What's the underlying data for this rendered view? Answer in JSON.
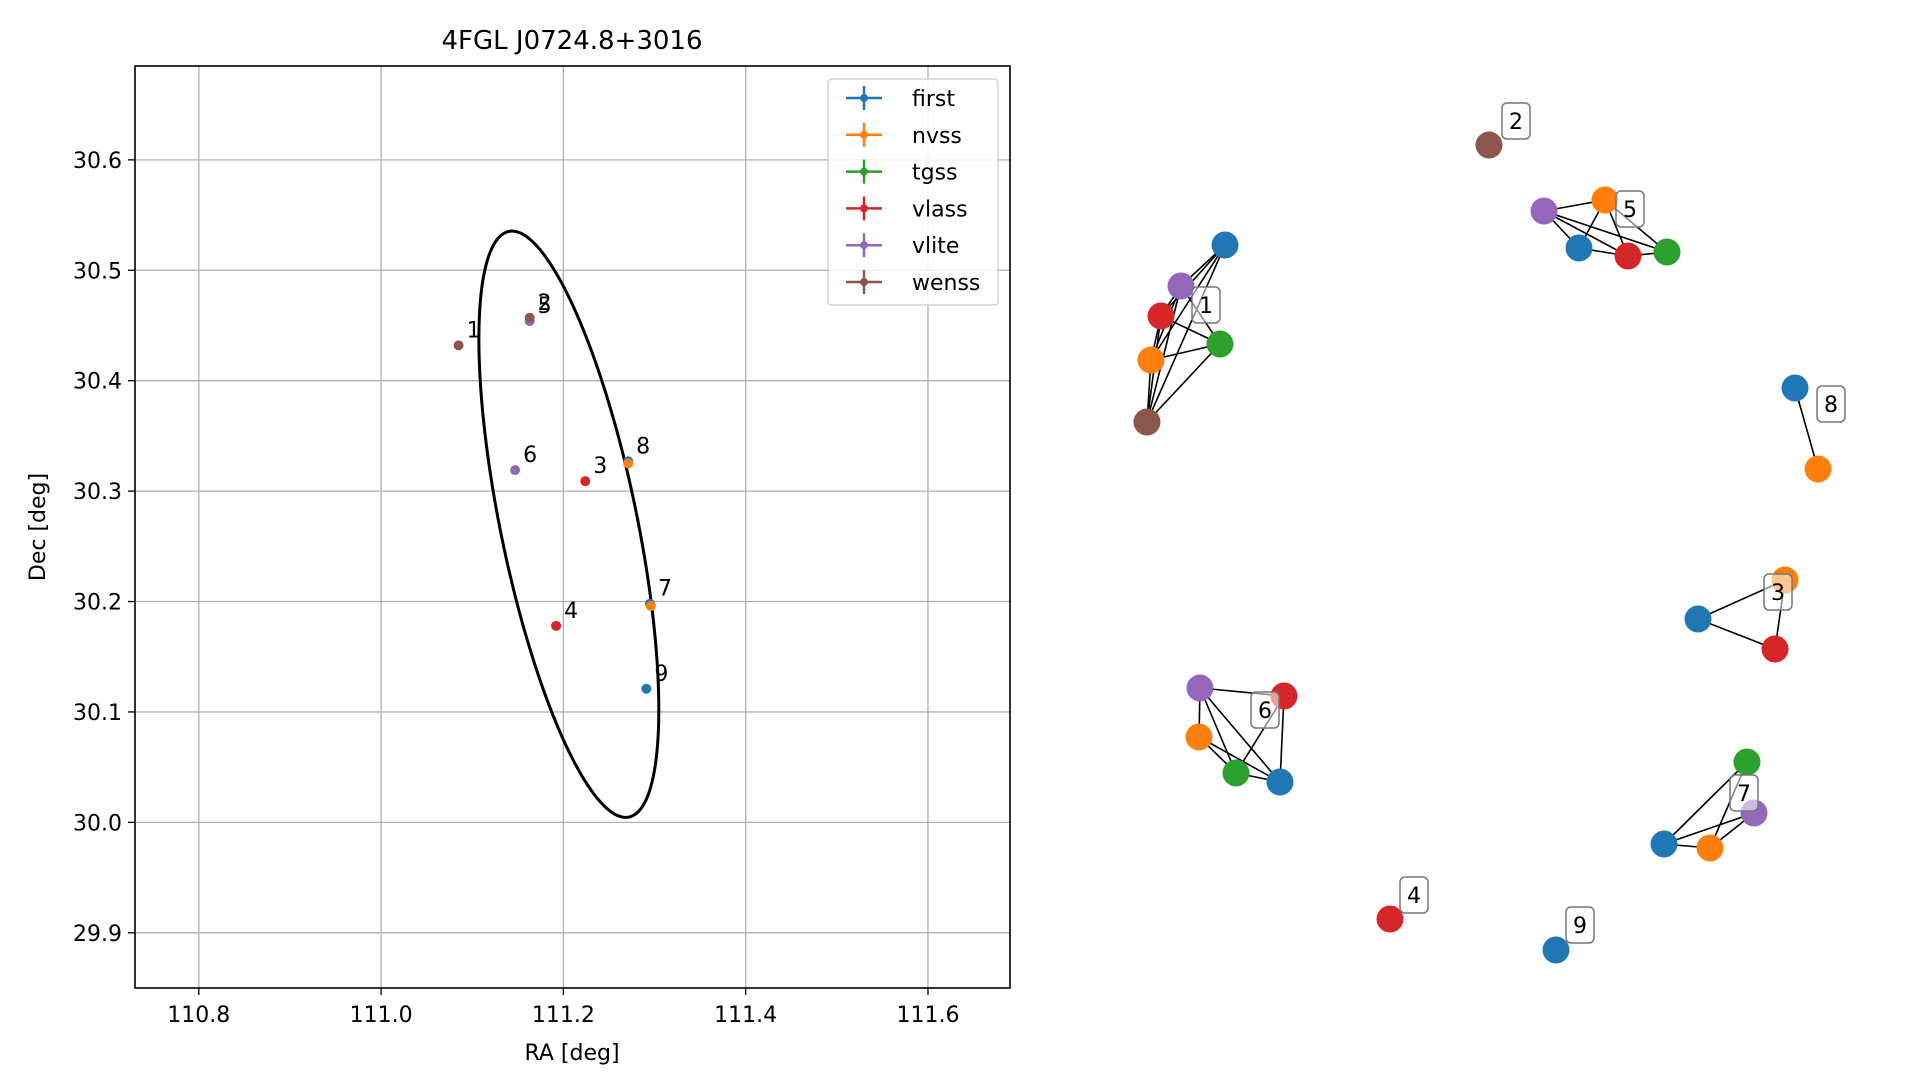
{
  "chart_data": [
    {
      "type": "scatter",
      "title": "4FGL J0724.8+3016",
      "xlabel": "RA [deg]",
      "ylabel": "Dec [deg]",
      "xlim": [
        110.73,
        111.69
      ],
      "ylim": [
        29.85,
        30.685
      ],
      "xticks": [
        110.8,
        111.0,
        111.2,
        111.4,
        111.6
      ],
      "xtick_labels": [
        "110.8",
        "111.0",
        "111.2",
        "111.4",
        "111.6"
      ],
      "yticks": [
        29.9,
        30.0,
        30.1,
        30.2,
        30.3,
        30.4,
        30.5,
        30.6
      ],
      "ytick_labels": [
        "29.9",
        "30.0",
        "30.1",
        "30.2",
        "30.3",
        "30.4",
        "30.5",
        "30.6"
      ],
      "grid": true,
      "legend_position": "upper right",
      "series": [
        {
          "name": "first",
          "color": "#1f77b4",
          "points": [
            [
              111.271,
              30.327
            ],
            [
              111.295,
              30.198
            ],
            [
              111.291,
              30.121
            ]
          ]
        },
        {
          "name": "nvss",
          "color": "#ff7f0e",
          "points": [
            [
              111.271,
              30.325
            ],
            [
              111.296,
              30.196
            ]
          ]
        },
        {
          "name": "tgss",
          "color": "#2ca02c",
          "points": []
        },
        {
          "name": "vlass",
          "color": "#d62728",
          "points": [
            [
              111.224,
              30.309
            ],
            [
              111.192,
              30.178
            ]
          ]
        },
        {
          "name": "vlite",
          "color": "#9467bd",
          "points": [
            [
              111.147,
              30.319
            ],
            [
              111.163,
              30.454
            ]
          ]
        },
        {
          "name": "wenss",
          "color": "#8c564b",
          "points": [
            [
              111.085,
              30.432
            ],
            [
              111.163,
              30.457
            ]
          ]
        }
      ],
      "annotations": [
        {
          "text": "1",
          "x": 111.085,
          "y": 30.432
        },
        {
          "text": "5",
          "x": 111.163,
          "y": 30.454
        },
        {
          "text": "2",
          "x": 111.163,
          "y": 30.457
        },
        {
          "text": "6",
          "x": 111.147,
          "y": 30.319
        },
        {
          "text": "3",
          "x": 111.224,
          "y": 30.309
        },
        {
          "text": "8",
          "x": 111.271,
          "y": 30.327
        },
        {
          "text": "7",
          "x": 111.295,
          "y": 30.198
        },
        {
          "text": "4",
          "x": 111.192,
          "y": 30.178
        },
        {
          "text": "9",
          "x": 111.291,
          "y": 30.121
        }
      ],
      "ellipse": {
        "center": [
          111.206,
          30.27
        ],
        "semi_major_deg": 0.2733,
        "semi_minor_deg": 0.0743,
        "position_angle_deg": 104.3
      }
    },
    {
      "type": "network",
      "nodes": [
        {
          "id": "n1",
          "color": "#1f77b4"
        },
        {
          "id": "n2",
          "color": "#9467bd"
        },
        {
          "id": "n3",
          "color": "#d62728"
        },
        {
          "id": "n4",
          "color": "#2ca02c"
        },
        {
          "id": "n5",
          "color": "#ff7f0e"
        },
        {
          "id": "n6",
          "color": "#8c564b"
        },
        {
          "id": "n7",
          "color": "#8c564b"
        },
        {
          "id": "n8",
          "color": "#9467bd"
        },
        {
          "id": "n9",
          "color": "#ff7f0e"
        },
        {
          "id": "n10",
          "color": "#1f77b4"
        },
        {
          "id": "n11",
          "color": "#d62728"
        },
        {
          "id": "n12",
          "color": "#2ca02c"
        },
        {
          "id": "n13",
          "color": "#1f77b4"
        },
        {
          "id": "n14",
          "color": "#ff7f0e"
        },
        {
          "id": "n15",
          "color": "#ff7f0e"
        },
        {
          "id": "n16",
          "color": "#1f77b4"
        },
        {
          "id": "n17",
          "color": "#d62728"
        },
        {
          "id": "n18",
          "color": "#9467bd"
        },
        {
          "id": "n19",
          "color": "#d62728"
        },
        {
          "id": "n20",
          "color": "#ff7f0e"
        },
        {
          "id": "n21",
          "color": "#2ca02c"
        },
        {
          "id": "n22",
          "color": "#1f77b4"
        },
        {
          "id": "n23",
          "color": "#2ca02c"
        },
        {
          "id": "n24",
          "color": "#9467bd"
        },
        {
          "id": "n25",
          "color": "#1f77b4"
        },
        {
          "id": "n26",
          "color": "#ff7f0e"
        },
        {
          "id": "n27",
          "color": "#d62728"
        },
        {
          "id": "n28",
          "color": "#1f77b4"
        }
      ],
      "edges": [
        [
          "n1",
          "n2"
        ],
        [
          "n1",
          "n3"
        ],
        [
          "n1",
          "n5"
        ],
        [
          "n1",
          "n6"
        ],
        [
          "n2",
          "n3"
        ],
        [
          "n2",
          "n4"
        ],
        [
          "n2",
          "n5"
        ],
        [
          "n2",
          "n6"
        ],
        [
          "n3",
          "n4"
        ],
        [
          "n3",
          "n5"
        ],
        [
          "n3",
          "n6"
        ],
        [
          "n4",
          "n5"
        ],
        [
          "n4",
          "n6"
        ],
        [
          "n5",
          "n6"
        ],
        [
          "n8",
          "n9"
        ],
        [
          "n8",
          "n10"
        ],
        [
          "n8",
          "n11"
        ],
        [
          "n8",
          "n12"
        ],
        [
          "n9",
          "n10"
        ],
        [
          "n9",
          "n11"
        ],
        [
          "n9",
          "n12"
        ],
        [
          "n10",
          "n11"
        ],
        [
          "n11",
          "n12"
        ],
        [
          "n13",
          "n14"
        ],
        [
          "n15",
          "n16"
        ],
        [
          "n15",
          "n17"
        ],
        [
          "n16",
          "n17"
        ],
        [
          "n18",
          "n19"
        ],
        [
          "n18",
          "n20"
        ],
        [
          "n18",
          "n21"
        ],
        [
          "n18",
          "n22"
        ],
        [
          "n19",
          "n21"
        ],
        [
          "n19",
          "n22"
        ],
        [
          "n20",
          "n21"
        ],
        [
          "n20",
          "n22"
        ],
        [
          "n21",
          "n22"
        ],
        [
          "n23",
          "n25"
        ],
        [
          "n23",
          "n26"
        ],
        [
          "n24",
          "n25"
        ],
        [
          "n24",
          "n26"
        ],
        [
          "n25",
          "n26"
        ]
      ],
      "labels": [
        {
          "text": "1",
          "near": "n3"
        },
        {
          "text": "2",
          "near": "n7"
        },
        {
          "text": "5",
          "near": "n9"
        },
        {
          "text": "8",
          "near": "n13"
        },
        {
          "text": "3",
          "near": "n15"
        },
        {
          "text": "6",
          "near": "n18"
        },
        {
          "text": "7",
          "near": "n24"
        },
        {
          "text": "4",
          "near": "n27"
        },
        {
          "text": "9",
          "near": "n28"
        }
      ]
    }
  ]
}
